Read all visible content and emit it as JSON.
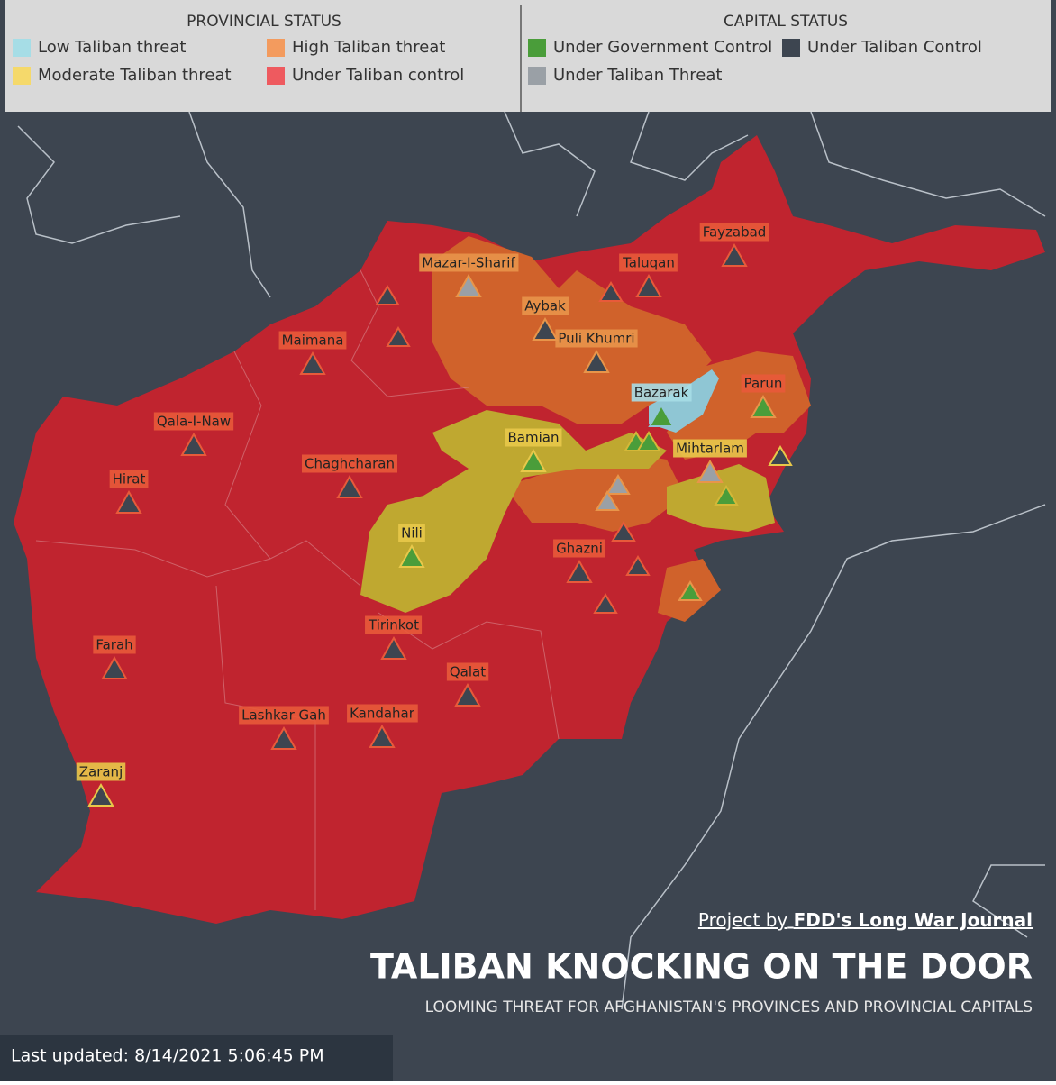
{
  "legend": {
    "provincial": {
      "title": "PROVINCIAL STATUS",
      "items": [
        "Low Taliban threat",
        "High Taliban threat",
        "Moderate Taliban threat",
        "Under Taliban control"
      ]
    },
    "capital": {
      "title": "CAPITAL STATUS",
      "items": [
        "Under Government Control",
        "Under Taliban Control",
        "Under Taliban Threat"
      ]
    }
  },
  "map": {
    "cities": [
      "Fayzabad",
      "Mazar-I-Sharif",
      "Taluqan",
      "Aybak",
      "Maimana",
      "Puli Khumri",
      "Bazarak",
      "Parun",
      "Qala-I-Naw",
      "Bamian",
      "Mihtarlam",
      "Hirat",
      "Chaghcharan",
      "Nili",
      "Ghazni",
      "Tirinkot",
      "Farah",
      "Qalat",
      "Lashkar Gah",
      "Kandahar",
      "Zaranj"
    ]
  },
  "credit": {
    "prefix": "Project by",
    "source": "FDD's Long War Journal"
  },
  "title": "TALIBAN KNOCKING ON THE  DOOR",
  "subtitle": "LOOMING THREAT FOR AFGHANISTAN'S PROVINCES AND PROVINCIAL CAPITALS",
  "footer": "Last updated: 8/14/2021 5:06:45 PM"
}
